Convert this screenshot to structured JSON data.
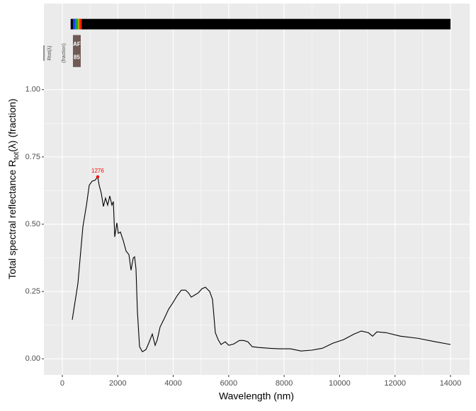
{
  "chart_data": {
    "type": "line",
    "x": [
      358,
      562,
      741,
      869,
      971,
      1073,
      1175,
      1276,
      1329,
      1405,
      1482,
      1558,
      1635,
      1712,
      1788,
      1840,
      1891,
      1967,
      2018,
      2095,
      2197,
      2300,
      2402,
      2478,
      2555,
      2606,
      2657,
      2708,
      2785,
      2887,
      3015,
      3117,
      3245,
      3347,
      3424,
      3526,
      3679,
      3832,
      3986,
      4139,
      4292,
      4446,
      4548,
      4650,
      4778,
      4905,
      5033,
      5161,
      5314,
      5416,
      5518,
      5621,
      5723,
      5876,
      6004,
      6183,
      6387,
      6541,
      6694,
      6847,
      7077,
      7460,
      7844,
      8227,
      8610,
      8993,
      9377,
      9760,
      10143,
      10526,
      10782,
      11037,
      11190,
      11344,
      11676,
      12187,
      12826,
      13465,
      14000
    ],
    "values": [
      0.145,
      0.28,
      0.49,
      0.57,
      0.645,
      0.66,
      0.663,
      0.676,
      0.645,
      0.615,
      0.566,
      0.597,
      0.571,
      0.605,
      0.571,
      0.584,
      0.453,
      0.505,
      0.466,
      0.471,
      0.439,
      0.4,
      0.387,
      0.329,
      0.374,
      0.379,
      0.334,
      0.176,
      0.045,
      0.026,
      0.034,
      0.058,
      0.092,
      0.05,
      0.071,
      0.118,
      0.15,
      0.184,
      0.208,
      0.234,
      0.255,
      0.255,
      0.245,
      0.229,
      0.237,
      0.245,
      0.26,
      0.266,
      0.25,
      0.221,
      0.097,
      0.071,
      0.053,
      0.063,
      0.05,
      0.055,
      0.068,
      0.068,
      0.063,
      0.045,
      0.042,
      0.039,
      0.037,
      0.037,
      0.029,
      0.032,
      0.039,
      0.058,
      0.071,
      0.092,
      0.103,
      0.097,
      0.084,
      0.1,
      0.097,
      0.084,
      0.076,
      0.063,
      0.053
    ],
    "color": "#000000",
    "x_label": "Wavelength (nm)",
    "y_label": "Total  spectral  reflectance  R",
    "y_label_sub": "tot",
    "y_label_tail": "(λ)  (fraction)",
    "xlim": [
      -664,
      14690
    ],
    "ylim": [
      -0.06,
      1.32
    ],
    "xticks": [
      0,
      2000,
      4000,
      6000,
      8000,
      10000,
      12000,
      14000
    ],
    "yticks": [
      {
        "value": 0,
        "label": "0.00"
      },
      {
        "value": 0.25,
        "label": "0.25"
      },
      {
        "value": 0.5,
        "label": "0.50"
      },
      {
        "value": 0.75,
        "label": "0.75"
      },
      {
        "value": 1,
        "label": "1.00"
      }
    ],
    "grid": true,
    "peak": {
      "x": 1276,
      "y": 0.676,
      "color": "#ff0000"
    },
    "wavebands": [
      {
        "start": 300,
        "end": 14000,
        "y": [
          1.224,
          1.263
        ],
        "color": "#000000"
      },
      {
        "start": 380,
        "end": 450,
        "y": [
          1.224,
          1.263
        ],
        "color": "#3030ff"
      },
      {
        "start": 450,
        "end": 500,
        "y": [
          1.224,
          1.263
        ],
        "color": "#0080ff"
      },
      {
        "start": 500,
        "end": 570,
        "y": [
          1.224,
          1.263
        ],
        "color": "#00c000"
      },
      {
        "start": 570,
        "end": 610,
        "y": [
          1.224,
          1.263
        ],
        "color": "#ffc000"
      },
      {
        "start": 610,
        "end": 700,
        "y": [
          1.224,
          1.263
        ],
        "color": "#ff2000"
      }
    ],
    "box": {
      "start": 383,
      "end": 664,
      "y": [
        1.084,
        1.203
      ],
      "color": "#6f5a55",
      "labels": [
        "AF",
        "85"
      ]
    },
    "legend_labels": [
      "Rtot(λ)",
      "(fraction)"
    ]
  }
}
